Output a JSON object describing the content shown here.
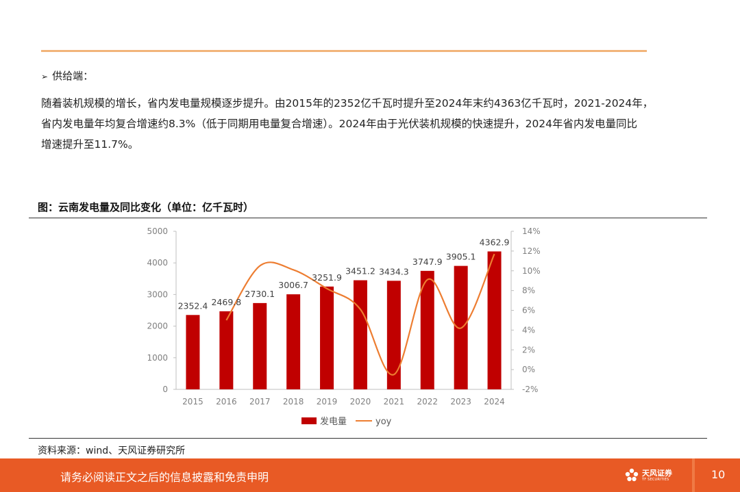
{
  "bullet": {
    "arrow": "➢",
    "label": "供给端："
  },
  "paragraph": [
    "随着装机规模的增长，省内发电量规模逐步提升。由2015年的2352亿千瓦时提升至2024年末约4363亿千瓦时，2021-2024年，",
    "省内发电量年均复合增速约8.3%（低于同期用电量复合增速）。2024年由于光伏装机规模的快速提升，2024年省内发电量同比",
    "增速提升至11.7%。"
  ],
  "figure_title": "图：云南发电量及同比变化（单位：亿千瓦时）",
  "source": "资料来源：wind、天风证券研究所",
  "footer": {
    "disclaimer": "请务必阅读正文之后的信息披露和免责申明",
    "logo_text": "天风证券",
    "logo_sub": "TF SECURITIES",
    "page_number": "10"
  },
  "colors": {
    "bar": "#c00000",
    "line": "#ed7d31",
    "footer": "#e85a25",
    "rule": "#f2b47a"
  },
  "chart_data": {
    "type": "bar",
    "categories": [
      "2015",
      "2016",
      "2017",
      "2018",
      "2019",
      "2020",
      "2021",
      "2022",
      "2023",
      "2024"
    ],
    "series": [
      {
        "name": "发电量",
        "type": "bar",
        "axis": "left",
        "values": [
          2352.4,
          2469.8,
          2730.1,
          3006.7,
          3251.9,
          3451.2,
          3434.3,
          3747.9,
          3905.1,
          4362.9
        ],
        "labels": [
          "2352.4",
          "2469.8",
          "2730.1",
          "3006.7",
          "3251.9",
          "3451.2",
          "3434.3",
          "3747.9",
          "3905.1",
          "4362.9"
        ]
      },
      {
        "name": "yoy",
        "type": "line",
        "axis": "right",
        "values": [
          null,
          5.0,
          10.5,
          10.1,
          8.2,
          6.1,
          -0.5,
          9.1,
          4.2,
          11.7
        ]
      }
    ],
    "ylim_left": [
      0,
      5000
    ],
    "yticks_left": [
      0,
      1000,
      2000,
      3000,
      4000,
      5000
    ],
    "ylim_right": [
      -2,
      14
    ],
    "yticks_right": [
      "-2%",
      "0%",
      "2%",
      "4%",
      "6%",
      "8%",
      "10%",
      "12%",
      "14%"
    ],
    "legend": "bottom",
    "grid": false
  }
}
